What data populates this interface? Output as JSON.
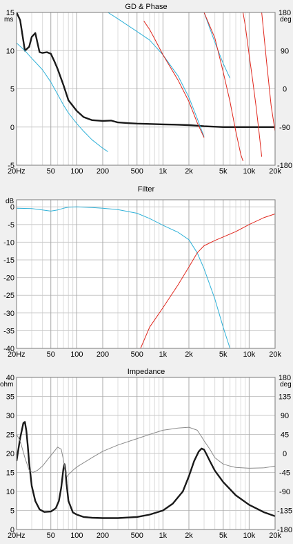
{
  "chart_data": [
    {
      "type": "line",
      "title": "GD & Phase",
      "x_scale": "log",
      "xlim": [
        20,
        20000
      ],
      "x_ticks": [
        20,
        50,
        100,
        200,
        500,
        1000,
        2000,
        5000,
        10000,
        20000
      ],
      "x_tick_labels": [
        "20Hz",
        "50",
        "100",
        "200",
        "500",
        "1k",
        "2k",
        "5k",
        "10k",
        "20k"
      ],
      "y_left": {
        "unit": "ms",
        "lim": [
          -5,
          15
        ],
        "ticks": [
          -5,
          0,
          5,
          10,
          15
        ],
        "tick_labels": [
          "-5",
          "0",
          "5",
          "10",
          "15"
        ]
      },
      "y_right": {
        "unit": "deg",
        "lim": [
          -180,
          180
        ],
        "ticks": [
          -180,
          -90,
          0,
          90,
          180
        ],
        "tick_labels": [
          "-180",
          "-90",
          "0",
          "90",
          "180"
        ]
      },
      "grid": true,
      "series": [
        {
          "color": "#1a1a1a",
          "width": 2.4,
          "axis": "left",
          "x": [
            20,
            22,
            25,
            28,
            30,
            33,
            35,
            37,
            40,
            45,
            50,
            55,
            60,
            70,
            80,
            100,
            120,
            150,
            200,
            250,
            300,
            400,
            500,
            700,
            1000,
            1500,
            2000,
            3000,
            5000,
            10000,
            20000
          ],
          "y": [
            15,
            14,
            10,
            10.5,
            11.8,
            12.3,
            11,
            9.8,
            9.7,
            9.8,
            9.6,
            8.6,
            7.6,
            5.5,
            3.5,
            2.1,
            1.3,
            0.9,
            0.8,
            0.85,
            0.6,
            0.5,
            0.45,
            0.4,
            0.35,
            0.3,
            0.25,
            0.1,
            0.0,
            0.0,
            0.0
          ]
        },
        {
          "color": "#2fb1d8",
          "width": 1.0,
          "axis": "right",
          "x": [
            20,
            25,
            30,
            40,
            50,
            60,
            70,
            80,
            100,
            120,
            150,
            200,
            230,
            230.1,
            300,
            400,
            500,
            700,
            1000,
            1500,
            2000,
            2500,
            3000,
            3000.1,
            4000,
            5000,
            6000
          ],
          "y": [
            108,
            90,
            72,
            45,
            16,
            -13,
            -38,
            -57,
            -82,
            -100,
            -120,
            -140,
            -148,
            180,
            165,
            148,
            135,
            115,
            80,
            30,
            -20,
            -70,
            -113,
            180,
            110,
            60,
            25
          ]
        },
        {
          "color": "#e0261c",
          "width": 1.0,
          "axis": "right",
          "x": [
            600,
            700,
            800,
            1000,
            1500,
            2000,
            2500,
            3000,
            3000.1,
            4000,
            5000,
            6000,
            7000,
            8000,
            8500,
            8500.1,
            9000,
            10000,
            11000,
            12000,
            13000,
            14000,
            14000.1,
            16000,
            18000,
            20000
          ],
          "y": [
            160,
            140,
            118,
            80,
            20,
            -30,
            -80,
            -115,
            180,
            120,
            40,
            -30,
            -100,
            -155,
            -170,
            180,
            150,
            80,
            20,
            -40,
            -100,
            -160,
            180,
            60,
            -40,
            -100
          ]
        }
      ]
    },
    {
      "type": "line",
      "title": "Filter",
      "x_scale": "log",
      "xlim": [
        20,
        20000
      ],
      "x_ticks": [
        20,
        50,
        100,
        200,
        500,
        1000,
        2000,
        5000,
        10000,
        20000
      ],
      "x_tick_labels": [
        "20Hz",
        "50",
        "100",
        "200",
        "500",
        "1k",
        "2k",
        "5k",
        "10k",
        "20k"
      ],
      "y_left": {
        "unit": "dB",
        "lim": [
          -40,
          2
        ],
        "ticks": [
          -40,
          -35,
          -30,
          -25,
          -20,
          -15,
          -10,
          -5,
          0
        ],
        "tick_labels": [
          "-40",
          "-35",
          "-30",
          "-25",
          "-20",
          "-15",
          "-10",
          "-5",
          "0"
        ]
      },
      "grid": true,
      "series": [
        {
          "color": "#2fb1d8",
          "width": 1.0,
          "axis": "left",
          "x": [
            20,
            30,
            40,
            50,
            60,
            70,
            80,
            100,
            150,
            200,
            300,
            500,
            700,
            1000,
            1500,
            2000,
            2500,
            3000,
            4000,
            5000,
            6000
          ],
          "y": [
            -0.4,
            -0.5,
            -0.9,
            -1.2,
            -0.9,
            -0.4,
            -0.1,
            0.0,
            -0.2,
            -0.4,
            -0.8,
            -1.8,
            -3.3,
            -5.2,
            -7.2,
            -9.3,
            -13,
            -17.5,
            -26,
            -34,
            -40
          ]
        },
        {
          "color": "#e0261c",
          "width": 1.0,
          "axis": "left",
          "x": [
            550,
            700,
            1000,
            1500,
            2000,
            2500,
            3000,
            4000,
            5000,
            7000,
            10000,
            15000,
            20000
          ],
          "y": [
            -40,
            -34,
            -28.5,
            -22,
            -17,
            -13,
            -11,
            -9.5,
            -8.5,
            -7,
            -5,
            -3,
            -2
          ]
        }
      ]
    },
    {
      "type": "line",
      "title": "Impedance",
      "x_scale": "log",
      "xlim": [
        20,
        20000
      ],
      "x_ticks": [
        20,
        50,
        100,
        200,
        500,
        1000,
        2000,
        5000,
        10000,
        20000
      ],
      "x_tick_labels": [
        "20Hz",
        "50",
        "100",
        "200",
        "500",
        "1k",
        "2k",
        "5k",
        "10k",
        "20k"
      ],
      "y_left": {
        "unit": "ohm",
        "lim": [
          0,
          40
        ],
        "ticks": [
          0,
          5,
          10,
          15,
          20,
          25,
          30,
          35,
          40
        ],
        "tick_labels": [
          "0",
          "5",
          "10",
          "15",
          "20",
          "25",
          "30",
          "35",
          "40"
        ]
      },
      "y_right": {
        "unit": "deg",
        "lim": [
          -180,
          180
        ],
        "ticks": [
          -180,
          -135,
          -90,
          -45,
          0,
          45,
          90,
          135,
          180
        ],
        "tick_labels": [
          "-180",
          "-135",
          "-90",
          "-45",
          "0",
          "45",
          "90",
          "135",
          "180"
        ]
      },
      "grid": true,
      "series": [
        {
          "color": "#1a1a1a",
          "width": 2.4,
          "axis": "left",
          "x": [
            20,
            22,
            24,
            25,
            26,
            27,
            28,
            30,
            33,
            37,
            42,
            50,
            57,
            62,
            66,
            70,
            72,
            74,
            76,
            80,
            90,
            100,
            120,
            150,
            200,
            300,
            500,
            700,
            1000,
            1300,
            1700,
            2000,
            2300,
            2600,
            2800,
            3000,
            3200,
            3500,
            4000,
            5000,
            7000,
            10000,
            15000,
            20000
          ],
          "y": [
            18,
            24,
            28,
            28.3,
            26,
            22,
            17.5,
            11.5,
            7.5,
            5.3,
            4.6,
            4.7,
            5.6,
            7.5,
            11,
            16,
            17.2,
            15.5,
            12,
            7.5,
            4.5,
            3.9,
            3.3,
            3.1,
            3.0,
            3.0,
            3.3,
            3.9,
            5.0,
            6.8,
            10,
            14,
            18,
            20.5,
            21.3,
            21,
            19.8,
            18,
            15.5,
            12.5,
            9,
            6.5,
            4.5,
            3.5
          ]
        },
        {
          "color": "#8a8a8a",
          "width": 1.0,
          "axis": "right",
          "x": [
            20,
            22,
            25,
            28,
            31,
            35,
            40,
            50,
            60,
            66,
            70,
            72,
            74,
            77,
            80,
            90,
            100,
            150,
            200,
            300,
            500,
            700,
            1000,
            1500,
            2000,
            2500,
            2800,
            3000,
            3500,
            4000,
            5000,
            6000,
            7000,
            10000,
            15000,
            20000
          ],
          "y": [
            45,
            30,
            -10,
            -40,
            -45,
            -40,
            -30,
            -5,
            15,
            10,
            -15,
            -30,
            -45,
            -55,
            -50,
            -40,
            -32,
            -10,
            5,
            20,
            35,
            45,
            55,
            60,
            62,
            55,
            40,
            30,
            10,
            -10,
            -25,
            -30,
            -33,
            -35,
            -34,
            -30
          ]
        }
      ]
    }
  ]
}
